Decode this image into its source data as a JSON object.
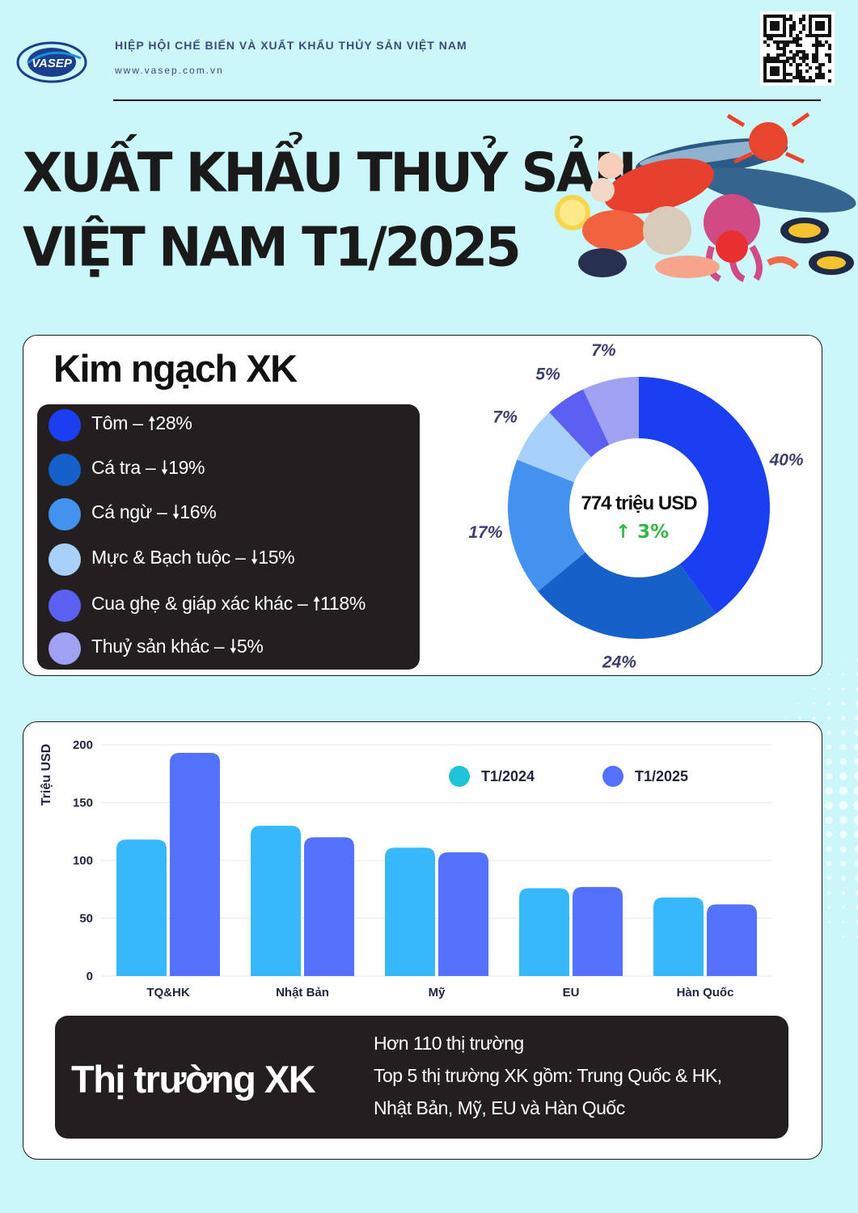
{
  "header": {
    "org_name": "HIỆP HỘI CHẾ BIẾN VÀ XUẤT KHẨU THỦY SẢN VIỆT NAM",
    "website": "www.vasep.com.vn",
    "logo_text": "VASEP",
    "title_line1": "XUẤT KHẨU THUỶ SẢN",
    "title_line2": "VIỆT NAM T1/2025"
  },
  "export_value": {
    "heading": "Kim ngạch XK",
    "total_label": "774 triệu USD",
    "total_change": "3%",
    "total_change_arrow": "↑",
    "colors": {
      "up": "#35b546",
      "text": "#111111"
    }
  },
  "chart_data": [
    {
      "type": "pie",
      "variant": "donut",
      "center_text": "774 triệu USD",
      "center_change": "3%",
      "slices": [
        {
          "label": "Tôm",
          "change": "↑ 28%",
          "value": 40,
          "value_label": "40%",
          "color": "#1a3ff2"
        },
        {
          "label": "Cá tra",
          "change": "↓ 19%",
          "value": 24,
          "value_label": "24%",
          "color": "#1560c9"
        },
        {
          "label": "Cá ngừ",
          "change": "↓ 16%",
          "value": 17,
          "value_label": "17%",
          "color": "#4392ef"
        },
        {
          "label": "Mực & Bạch tuộc",
          "change": "↓ 15%",
          "value": 7,
          "value_label": "7%",
          "color": "#a6d0f7"
        },
        {
          "label": "Cua ghẹ & giáp xác khác",
          "change": "↑118%",
          "value": 5,
          "value_label": "5%",
          "color": "#5b5ff2"
        },
        {
          "label": "Thuỷ sản khác",
          "change": "↓ 5%",
          "value": 7,
          "value_label": "7%",
          "color": "#9fa2f2"
        }
      ],
      "legend_placement": "left",
      "legend_texts": [
        "Tôm – 🠕28%",
        "Cá tra – 🠗19%",
        "Cá ngừ – 🠗16%",
        "Mực & Bạch tuộc – 🠗15%",
        "Cua ghẹ & giáp xác khác – 🠕118%",
        "Thuỷ sản khác – 🠗5%"
      ]
    },
    {
      "type": "bar",
      "categories": [
        "TQ&HK",
        "Nhật Bản",
        "Mỹ",
        "EU",
        "Hàn Quốc"
      ],
      "series": [
        {
          "name": "T1/2024",
          "values": [
            118,
            130,
            111,
            76,
            68
          ],
          "color": "#36b8fb"
        },
        {
          "name": "T1/2025",
          "values": [
            193,
            120,
            107,
            77,
            62
          ],
          "color": "#5371fb"
        }
      ],
      "ylabel": "Triệu USD",
      "xlabel": "",
      "ylim": [
        0,
        200
      ],
      "yticks": [
        0,
        50,
        100,
        150,
        200
      ],
      "grid": true,
      "legend_placement": "top-right",
      "legend_dot_colors": [
        "#1fc4d6",
        "#5371fb"
      ]
    }
  ],
  "markets": {
    "heading": "Thị trường XK",
    "lines": [
      "Hơn 110 thị trường",
      "Top 5 thị trường XK gồm: Trung Quốc & HK,",
      "Nhật Bản, Mỹ, EU và Hàn Quốc"
    ]
  },
  "colors": {
    "background": "#ccf7fa",
    "dark_box": "#231f20",
    "org_text": "#3b4a7a"
  }
}
